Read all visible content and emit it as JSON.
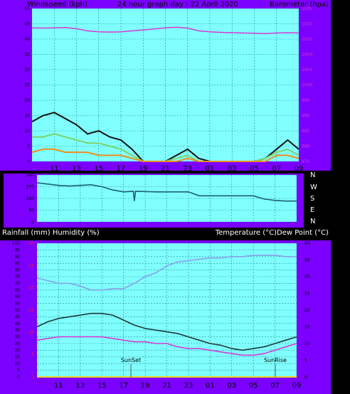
{
  "colors": {
    "frame": "#7b00ff",
    "plot_bg": "#80ffff",
    "grid": "#2a8a8a",
    "pressure": "#d43bd4",
    "wind_gust": "#111111",
    "wind_avg": "#7dd36a",
    "wind_speed": "#f08c1a",
    "direction": "#1e5e7a",
    "humidity": "#8aa0e8",
    "temperature": "#1e3a3a",
    "dewpoint": "#d43bd4",
    "rainfall": "#f0d020",
    "rain_axis": "#ff2020"
  },
  "chart_data": [
    {
      "type": "line",
      "title": "24 hour graph day : 22 April 2020",
      "ylabel_left": "Windspeed (kph)",
      "ylabel_right": "Barometer (hpa)",
      "ylim_left": [
        0,
        50
      ],
      "ylim_right": [
        975,
        1025
      ],
      "yticks_left": [
        "0",
        "5",
        "10",
        "15",
        "20",
        "25",
        "30",
        "35",
        "40",
        "45",
        "50"
      ],
      "yticks_right": [
        "975",
        "980",
        "985",
        "990",
        "995",
        "1000",
        "1005",
        "1010",
        "1015",
        "1020",
        "1025"
      ],
      "x_ticks": [
        "11",
        "13",
        "15",
        "17",
        "19",
        "21",
        "23",
        "01",
        "03",
        "05",
        "07",
        "09"
      ],
      "grid": true,
      "series": [
        {
          "name": "Barometer",
          "axis": "right",
          "x": [
            9,
            10,
            11,
            12,
            13,
            14,
            15,
            16,
            17,
            18,
            19,
            20,
            21,
            22,
            23,
            24,
            25,
            26,
            27,
            28,
            29,
            30,
            31,
            32,
            33
          ],
          "values": [
            1018.7,
            1018.6,
            1018.7,
            1018.8,
            1018.4,
            1017.7,
            1017.4,
            1017.3,
            1017.4,
            1017.7,
            1018,
            1018.3,
            1018.7,
            1018.9,
            1018.6,
            1017.7,
            1017.4,
            1017.2,
            1017.1,
            1017,
            1016.9,
            1016.8,
            1017,
            1017.1,
            1017
          ]
        },
        {
          "name": "Gust",
          "axis": "left",
          "x": [
            9,
            10,
            11,
            12,
            13,
            14,
            15,
            16,
            17,
            18,
            19,
            20,
            21,
            22,
            23,
            24,
            25,
            26,
            27,
            28,
            29,
            30,
            31,
            32,
            33
          ],
          "values": [
            13,
            15,
            16,
            14,
            12,
            9,
            10,
            8,
            7,
            4,
            0,
            0,
            0,
            2,
            4,
            1,
            0,
            0,
            0,
            0,
            0,
            1,
            4,
            7,
            4
          ]
        },
        {
          "name": "Average",
          "axis": "left",
          "x": [
            9,
            10,
            11,
            12,
            13,
            14,
            15,
            16,
            17,
            18,
            19,
            20,
            21,
            22,
            23,
            24,
            25,
            26,
            27,
            28,
            29,
            30,
            31,
            32,
            33
          ],
          "values": [
            8,
            8,
            9,
            8,
            7,
            6,
            6,
            5,
            4,
            2,
            0,
            0,
            0,
            1,
            2,
            0,
            0,
            0,
            0,
            0,
            0,
            1,
            3,
            4,
            2
          ]
        },
        {
          "name": "Wind Speed",
          "axis": "left",
          "x": [
            9,
            10,
            11,
            12,
            13,
            14,
            15,
            16,
            17,
            18,
            19,
            20,
            21,
            22,
            23,
            24,
            25,
            26,
            27,
            28,
            29,
            30,
            31,
            32,
            33
          ],
          "values": [
            3,
            4,
            4,
            3,
            3,
            3,
            2,
            2,
            2,
            1,
            0,
            0,
            0,
            0,
            1,
            0,
            0,
            0,
            0,
            0,
            0,
            0,
            2,
            2,
            1
          ]
        }
      ]
    },
    {
      "type": "line",
      "ylabel_right_letters": [
        "N",
        "W",
        "S",
        "E",
        "N"
      ],
      "ylim": [
        0,
        360
      ],
      "yticks_left": [
        "360",
        "270",
        "180",
        "90",
        "0"
      ],
      "grid": true,
      "series": [
        {
          "name": "Wind Direction",
          "x": [
            9,
            10,
            11,
            12,
            13,
            14,
            15,
            16,
            17,
            17.9,
            18,
            18.1,
            20,
            21,
            22,
            23,
            24,
            25,
            26,
            27,
            28,
            29,
            30,
            31,
            32,
            33
          ],
          "values": [
            300,
            290,
            280,
            275,
            280,
            285,
            270,
            245,
            230,
            235,
            160,
            235,
            230,
            230,
            230,
            230,
            200,
            200,
            200,
            200,
            200,
            200,
            175,
            165,
            160,
            160
          ]
        }
      ]
    },
    {
      "type": "line",
      "ylabel_left": "Rainfall (mm)  Humidity (%)",
      "ylabel_right": "Temperature (°C)Dew Point (°C)",
      "ylim_left": [
        0,
        100
      ],
      "ylim_rain": [
        0,
        30
      ],
      "ylim_right": [
        0,
        40
      ],
      "yticks_left": [
        "0",
        "5",
        "10",
        "15",
        "20",
        "25",
        "30",
        "35",
        "40",
        "45",
        "50",
        "55",
        "60",
        "65",
        "70",
        "75",
        "80",
        "85",
        "90",
        "95",
        "100"
      ],
      "yticks_rain": [
        "0",
        "5",
        "10",
        "15",
        "20",
        "25",
        "30"
      ],
      "yticks_right": [
        "0",
        "5",
        "10",
        "15",
        "20",
        "25",
        "30",
        "35",
        "40"
      ],
      "x_ticks": [
        "11",
        "13",
        "15",
        "17",
        "19",
        "21",
        "23",
        "01",
        "03",
        "05",
        "07",
        "09"
      ],
      "annotations": [
        "SunSet",
        "SunRise"
      ],
      "grid": true,
      "series": [
        {
          "name": "Humidity",
          "axis": "left",
          "x": [
            9,
            10,
            11,
            12,
            13,
            14,
            15,
            16,
            17,
            18,
            19,
            20,
            21,
            22,
            23,
            24,
            25,
            26,
            27,
            28,
            29,
            30,
            31,
            32,
            33
          ],
          "values": [
            74,
            72,
            70,
            70,
            68,
            65,
            65,
            66,
            66,
            70,
            75,
            78,
            83,
            86,
            87,
            88,
            89,
            89,
            90,
            90,
            91,
            91,
            91,
            90,
            90
          ]
        },
        {
          "name": "Temperature",
          "axis": "right",
          "x": [
            9,
            10,
            11,
            12,
            13,
            14,
            15,
            16,
            17,
            18,
            19,
            20,
            21,
            22,
            23,
            24,
            25,
            26,
            27,
            28,
            29,
            30,
            31,
            32,
            33
          ],
          "values": [
            15,
            16.5,
            17.5,
            18,
            18.5,
            19,
            19,
            18.5,
            17,
            15.5,
            14.5,
            14,
            13.5,
            13,
            12,
            11,
            10,
            9.5,
            8.5,
            8,
            8.5,
            9,
            10,
            11,
            12
          ]
        },
        {
          "name": "Dew Point",
          "axis": "right",
          "x": [
            9,
            10,
            11,
            12,
            13,
            14,
            15,
            16,
            17,
            18,
            19,
            20,
            21,
            22,
            23,
            24,
            25,
            26,
            27,
            28,
            29,
            30,
            31,
            32,
            33
          ],
          "values": [
            11,
            11.5,
            12,
            12,
            12,
            12,
            12,
            11.5,
            11,
            10.5,
            10.5,
            10,
            10,
            9,
            8.5,
            8.5,
            8,
            7.5,
            7,
            6.5,
            6.5,
            7,
            8,
            9,
            10
          ]
        },
        {
          "name": "Rainfall",
          "axis": "rain",
          "x": [
            9,
            33
          ],
          "values": [
            0,
            0
          ]
        }
      ]
    }
  ]
}
